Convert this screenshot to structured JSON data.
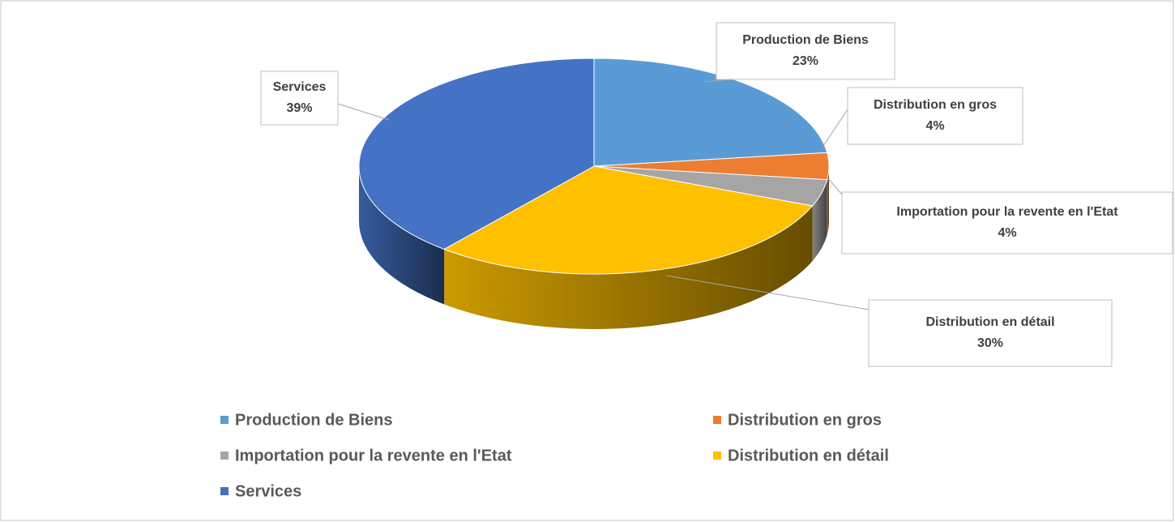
{
  "chart_data": {
    "type": "pie",
    "categories": [
      "Production de Biens",
      "Distribution en gros",
      "Importation pour la revente en l'Etat",
      "Distribution en détail",
      "Services"
    ],
    "values": [
      23,
      4,
      4,
      30,
      39
    ],
    "value_labels": [
      "23%",
      "4%",
      "4%",
      "30%",
      "39%"
    ],
    "colors": [
      "#5b9bd5",
      "#ed7d31",
      "#a5a5a5",
      "#ffc000",
      "#4472c4"
    ],
    "legend": "bottom"
  }
}
